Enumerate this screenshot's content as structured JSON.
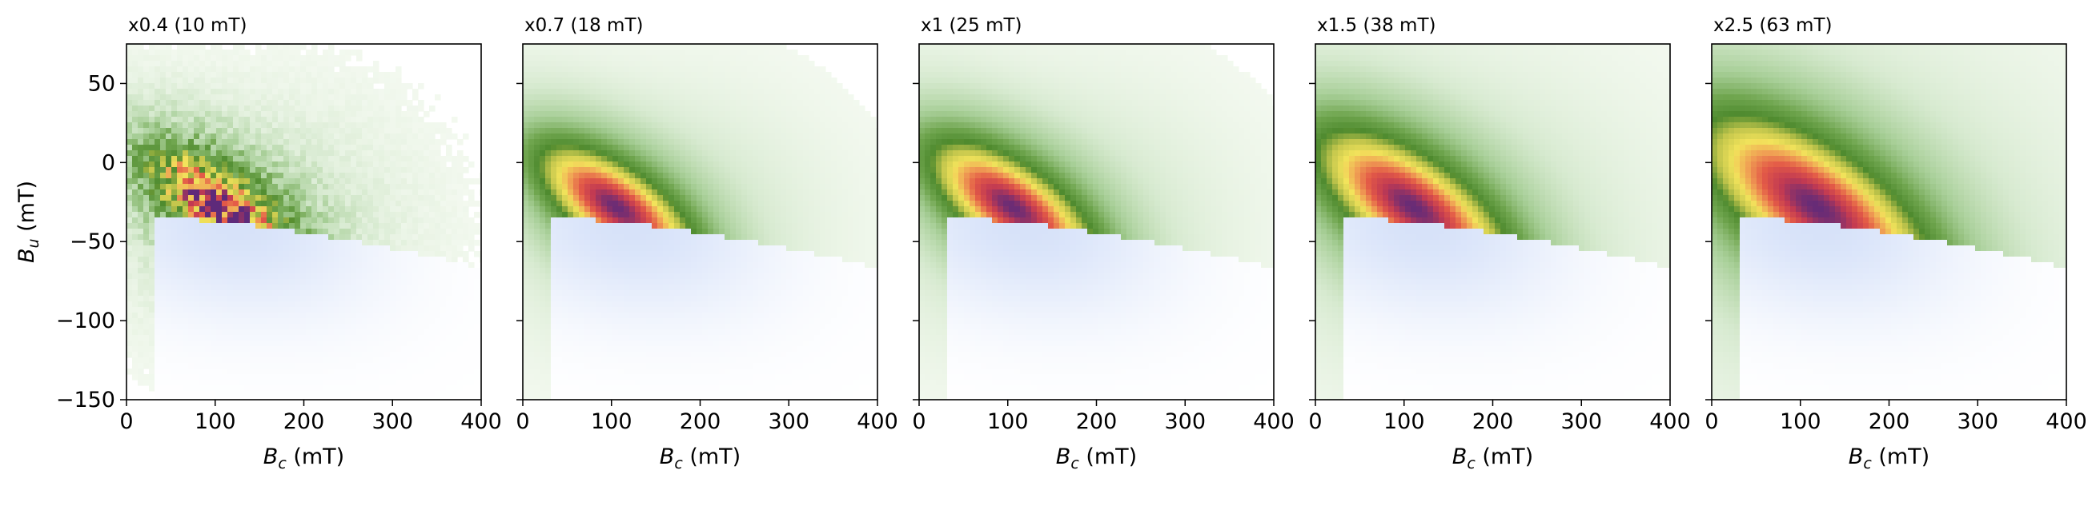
{
  "chart_data": {
    "type": "heatmap",
    "xlabel": "B_c (mT)",
    "xlabel_main": "B",
    "xlabel_sub": "c",
    "xlabel_unit": " (mT)",
    "ylabel": "B_u (mT)",
    "ylabel_main": "B",
    "ylabel_sub": "u",
    "ylabel_unit": " (mT)",
    "xlim": [
      0,
      400
    ],
    "ylim": [
      -150,
      75
    ],
    "x_ticks": [
      0,
      100,
      200,
      300,
      400
    ],
    "y_ticks": [
      -150,
      -100,
      -50,
      0,
      50
    ],
    "x_tick_labels": [
      "0",
      "100",
      "200",
      "300",
      "400"
    ],
    "y_tick_labels": [
      "−150",
      "−100",
      "−50",
      "0",
      "50"
    ],
    "grid": false,
    "colormap": [
      "#f7fbf4",
      "#d7ead0",
      "#a8cf98",
      "#6fa54e",
      "#4e8a2e",
      "#c3c64c",
      "#f2e35b",
      "#f0a154",
      "#e35a47",
      "#c23a52",
      "#5e2a7a"
    ],
    "negative_color": "#c9d8f7",
    "panels": [
      {
        "title": "x0.4  (10 mT)",
        "peak_bc": 105,
        "peak_bu": -28,
        "spread": 0.75,
        "noise": true
      },
      {
        "title": "x0.7  (18 mT)",
        "peak_bc": 105,
        "peak_bu": -28,
        "spread": 0.85,
        "noise": false
      },
      {
        "title": "x1  (25 mT)",
        "peak_bc": 105,
        "peak_bu": -28,
        "spread": 0.9,
        "noise": false
      },
      {
        "title": "x1.5  (38 mT)",
        "peak_bc": 110,
        "peak_bu": -28,
        "spread": 1.05,
        "noise": false
      },
      {
        "title": "x2.5  (63 mT)",
        "peak_bc": 118,
        "peak_bu": -28,
        "spread": 1.25,
        "noise": false
      }
    ]
  }
}
